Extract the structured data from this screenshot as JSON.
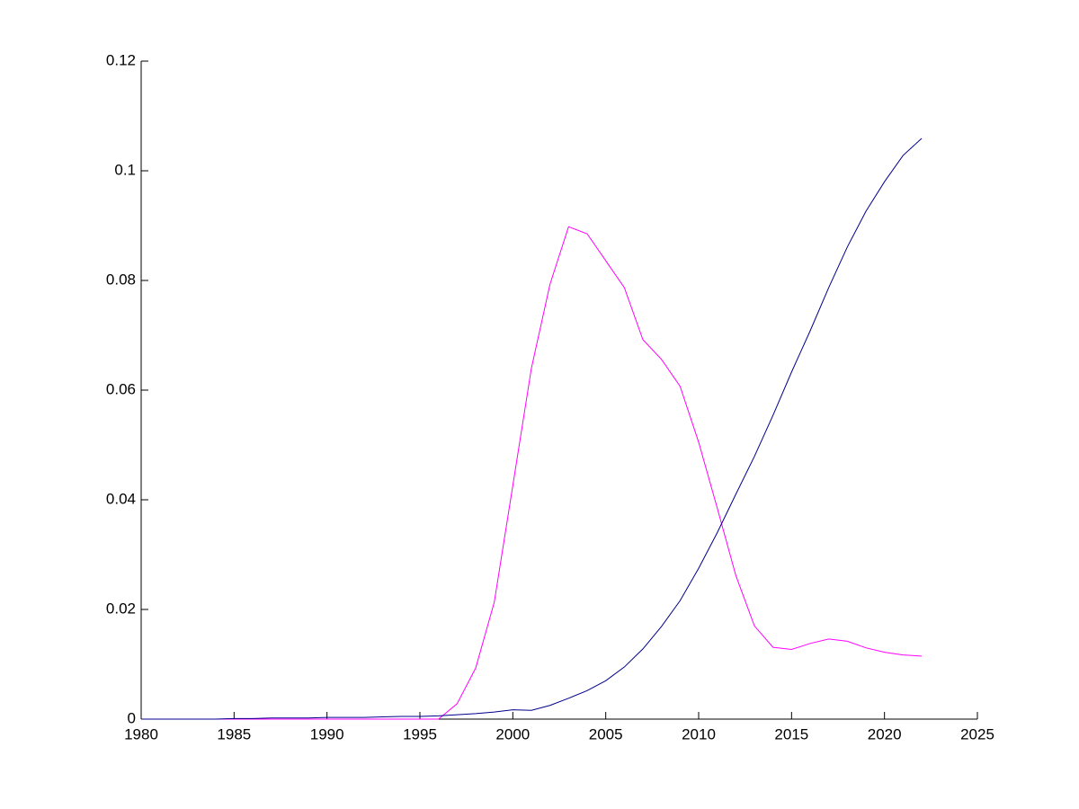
{
  "chart_data": {
    "type": "line",
    "x": [
      1980,
      1981,
      1982,
      1983,
      1984,
      1985,
      1986,
      1987,
      1988,
      1989,
      1990,
      1991,
      1992,
      1993,
      1994,
      1995,
      1996,
      1997,
      1998,
      1999,
      2000,
      2001,
      2002,
      2003,
      2004,
      2005,
      2006,
      2007,
      2008,
      2009,
      2010,
      2011,
      2012,
      2013,
      2014,
      2015,
      2016,
      2017,
      2018,
      2019,
      2020,
      2021,
      2022
    ],
    "series": [
      {
        "color": "#ff00ff",
        "values": [
          0,
          0,
          0,
          0,
          0,
          0,
          0,
          0,
          0,
          0,
          0,
          0,
          0,
          0,
          0,
          0,
          0,
          0.0028,
          0.0093,
          0.0213,
          0.0426,
          0.064,
          0.0793,
          0.0898,
          0.0885,
          0.0836,
          0.0787,
          0.0692,
          0.0656,
          0.0607,
          0.0505,
          0.0385,
          0.0262,
          0.017,
          0.0131,
          0.0127,
          0.0138,
          0.0146,
          0.0142,
          0.013,
          0.0122,
          0.0117,
          0.0115
        ]
      },
      {
        "color": "#00008b",
        "values": [
          0,
          0,
          0,
          0,
          0,
          0.0001,
          0.0001,
          0.0002,
          0.0002,
          0.0002,
          0.0003,
          0.0003,
          0.0003,
          0.0004,
          0.0005,
          0.0005,
          0.0006,
          0.0008,
          0.001,
          0.0013,
          0.0017,
          0.0016,
          0.0025,
          0.0038,
          0.0052,
          0.007,
          0.0095,
          0.0128,
          0.0169,
          0.0216,
          0.0275,
          0.034,
          0.041,
          0.0479,
          0.0554,
          0.0633,
          0.0708,
          0.0787,
          0.0861,
          0.0926,
          0.098,
          0.1028,
          0.1059
        ]
      }
    ],
    "xlim": [
      1980,
      2025
    ],
    "xticks": [
      1980,
      1985,
      1990,
      1995,
      2000,
      2005,
      2010,
      2015,
      2020,
      2025
    ],
    "ylim": [
      0,
      0.12
    ],
    "yticks": [
      0,
      0.02,
      0.04,
      0.06,
      0.08,
      0.1,
      0.12
    ]
  }
}
